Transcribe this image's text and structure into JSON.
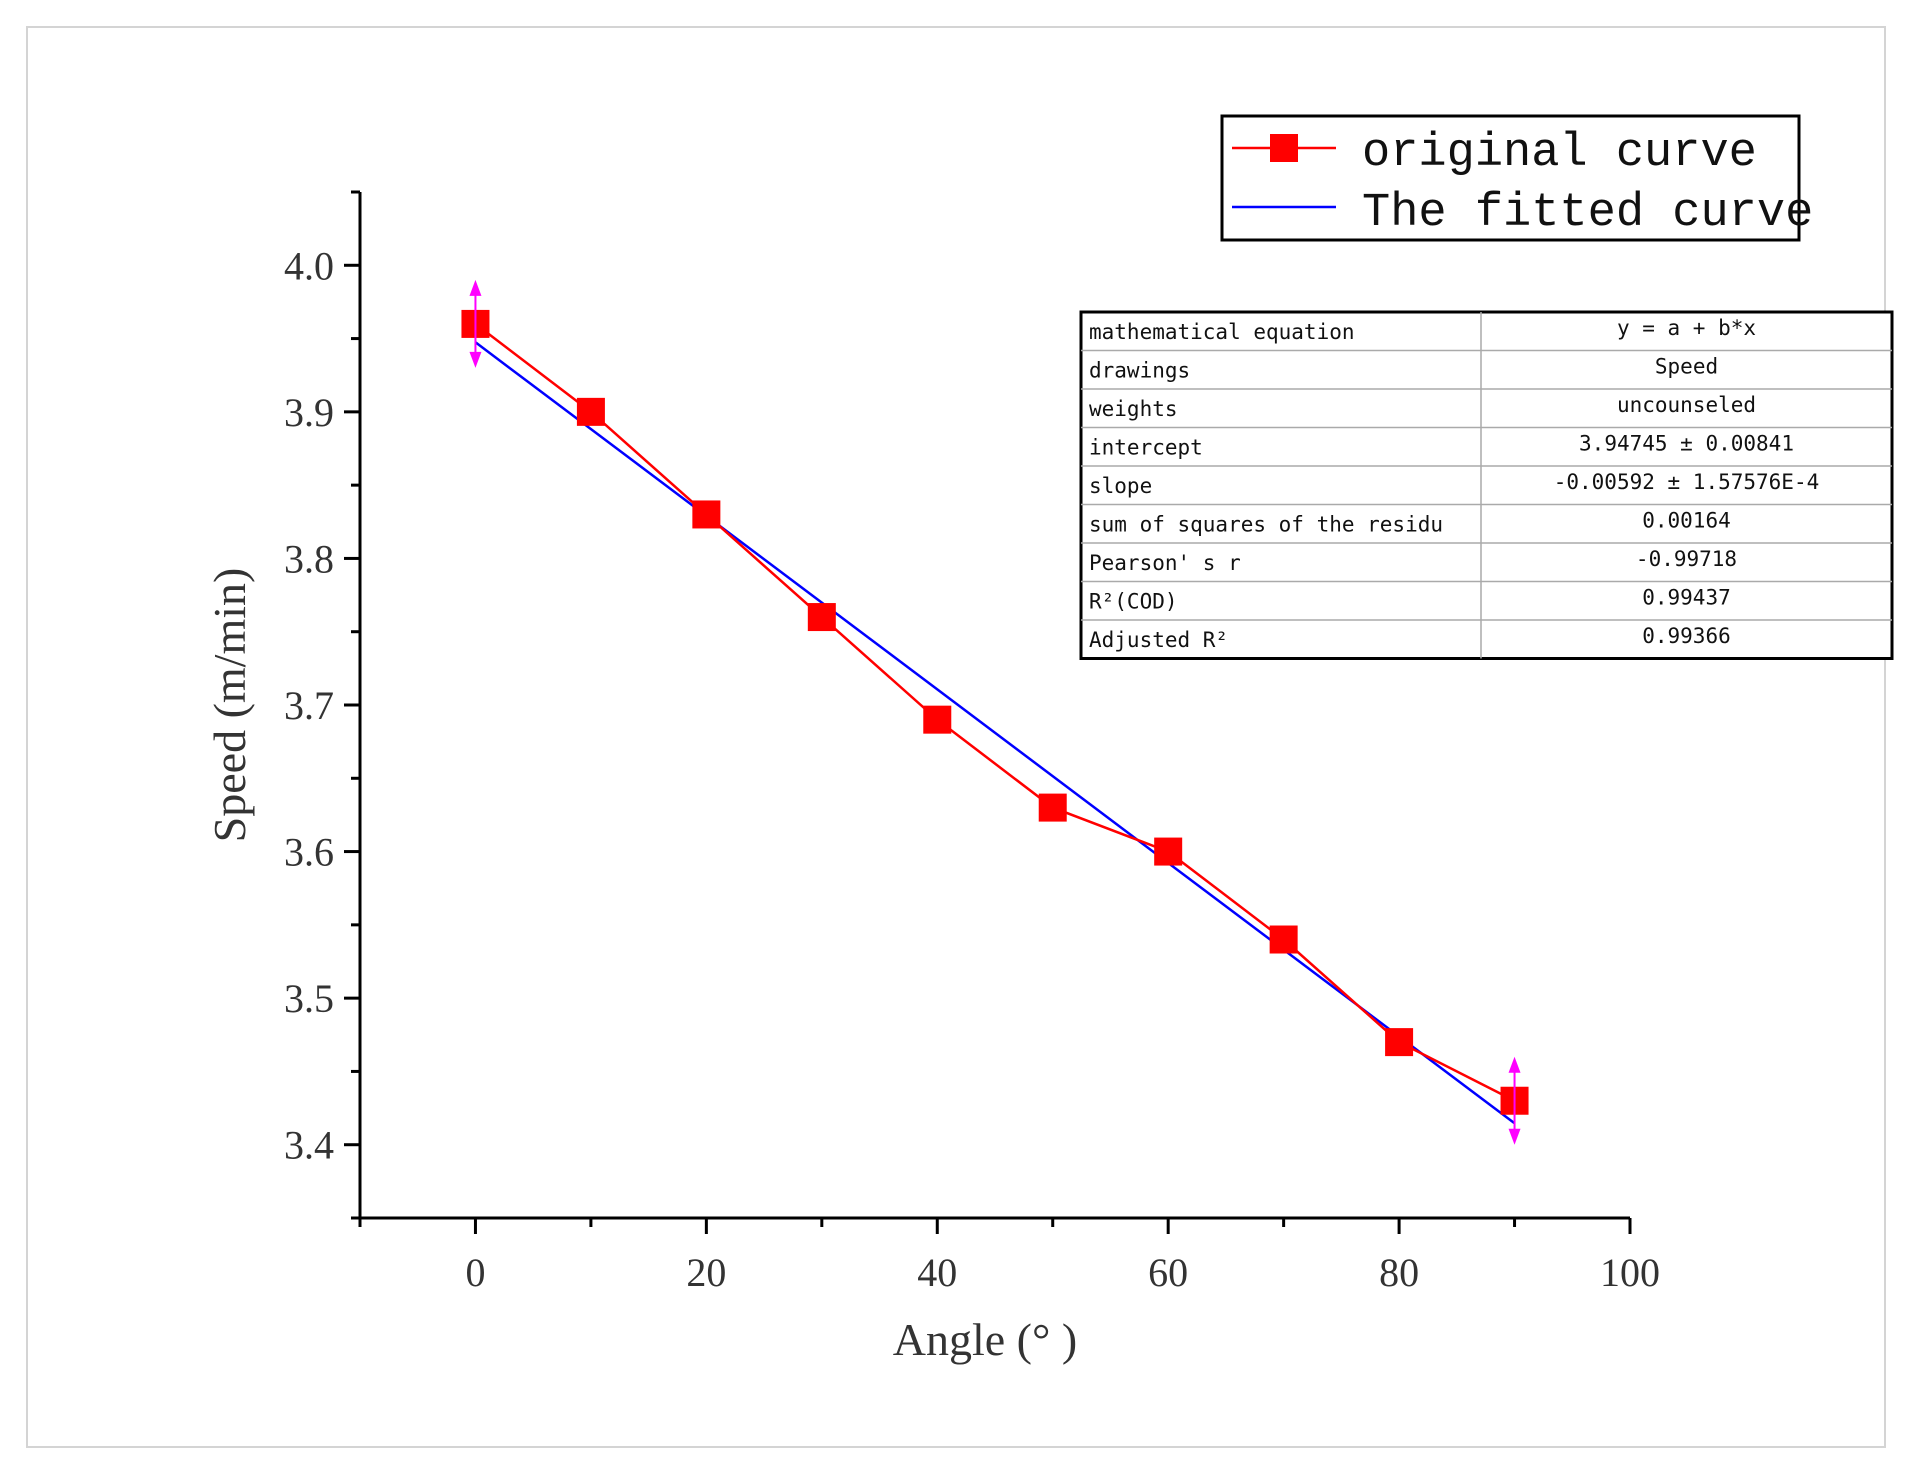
{
  "chart_data": {
    "type": "line",
    "xlabel": "Angle (° )",
    "ylabel": "Speed (m/min)",
    "xlim": [
      -10,
      100
    ],
    "ylim": [
      3.35,
      4.05
    ],
    "x_ticks": [
      0,
      20,
      40,
      60,
      80,
      100
    ],
    "x_tick_labels": [
      "0",
      "20",
      "40",
      "60",
      "80",
      "100"
    ],
    "y_ticks": [
      3.4,
      3.5,
      3.6,
      3.7,
      3.8,
      3.9,
      4.0
    ],
    "y_tick_labels": [
      "3.4",
      "3.5",
      "3.6",
      "3.7",
      "3.8",
      "3.9",
      "4.0"
    ],
    "grid": false,
    "legend_position": "top-right",
    "series": [
      {
        "name": "original curve",
        "color": "#ff0000",
        "marker": "square",
        "x": [
          0,
          10,
          20,
          30,
          40,
          50,
          60,
          70,
          80,
          90
        ],
        "y": [
          3.96,
          3.9,
          3.83,
          3.76,
          3.69,
          3.63,
          3.6,
          3.54,
          3.47,
          3.43
        ]
      },
      {
        "name": "The fitted curve",
        "color": "#0000ff",
        "marker": "none",
        "x": [
          0,
          90
        ],
        "y": [
          3.94745,
          3.41465
        ]
      }
    ],
    "annotations": [
      {
        "type": "range-arrow",
        "x": 0,
        "y": 3.96,
        "color": "#ff00ff"
      },
      {
        "type": "range-arrow",
        "x": 90,
        "y": 3.43,
        "color": "#ff00ff"
      }
    ],
    "stats_table": {
      "rows": [
        {
          "label": "mathematical equation",
          "value": "y = a + b*x"
        },
        {
          "label": "drawings",
          "value": "Speed"
        },
        {
          "label": "weights",
          "value": "uncounseled"
        },
        {
          "label": "intercept",
          "value": "3.94745 ± 0.00841"
        },
        {
          "label": "slope",
          "value": "-0.00592 ± 1.57576E-4"
        },
        {
          "label": "sum of squares of the residu",
          "value": "0.00164"
        },
        {
          "label": "Pearson' s r",
          "value": "-0.99718"
        },
        {
          "label": "R²(COD)",
          "value": "0.99437"
        },
        {
          "label": "Adjusted R²",
          "value": "0.99366"
        }
      ]
    }
  }
}
